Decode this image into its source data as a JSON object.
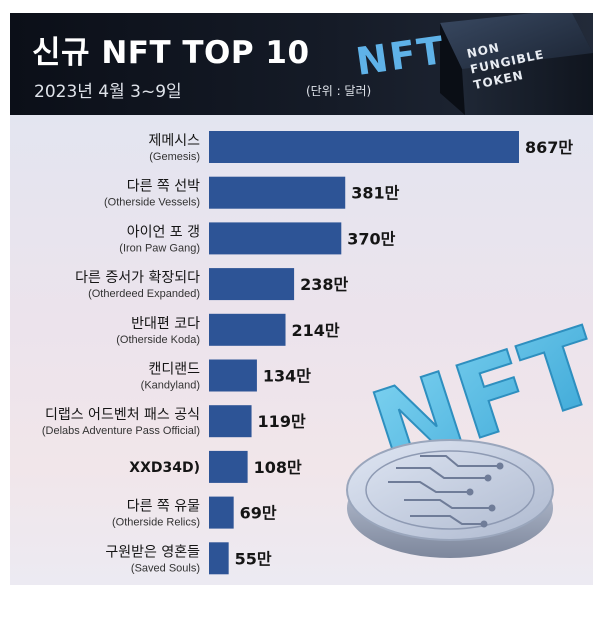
{
  "header": {
    "title": "신규 NFT TOP 10",
    "subtitle": "2023년 4월 3~9일",
    "unit": "(단위 : 달러)",
    "logo": {
      "mark": "NFT",
      "line1": "NON",
      "line2": "FUNGIBLE",
      "line3": "TOKEN"
    }
  },
  "illustration": {
    "text": "NFT",
    "icon": "circuit-coin-icon"
  },
  "colors": {
    "bar": "#2d5496",
    "header_bg": "#121722",
    "illustration": "#5bc2e7"
  },
  "chart_data": {
    "type": "bar",
    "orientation": "horizontal",
    "title": "신규 NFT TOP 10",
    "subtitle": "2023년 4월 3~9일",
    "unit": "(단위 : 달러)",
    "categories": [
      {
        "ko": "제메시스",
        "en": "(Gemesis)"
      },
      {
        "ko": "다른 쪽 선박",
        "en": "(Otherside Vessels)"
      },
      {
        "ko": "아이언 포 갱",
        "en": "(Iron Paw Gang)"
      },
      {
        "ko": "다른 증서가 확장되다",
        "en": "(Otherdeed Expanded)"
      },
      {
        "ko": "반대편 코다",
        "en": "(Otherside Koda)"
      },
      {
        "ko": "캔디랜드",
        "en": "(Kandyland)"
      },
      {
        "ko": "디랩스 어드벤처 패스 공식",
        "en": "(Delabs Adventure Pass Official)"
      },
      {
        "ko": "XXD34D)",
        "en": ""
      },
      {
        "ko": "다른 쪽 유물",
        "en": "(Otherside Relics)"
      },
      {
        "ko": "구원받은 영혼들",
        "en": "(Saved Souls)"
      }
    ],
    "values": [
      867,
      381,
      370,
      238,
      214,
      134,
      119,
      108,
      69,
      55
    ],
    "value_labels": [
      "867만",
      "381만",
      "370만",
      "238만",
      "214만",
      "134만",
      "119만",
      "108만",
      "69만",
      "55만"
    ],
    "legend": "none",
    "grid": false
  }
}
